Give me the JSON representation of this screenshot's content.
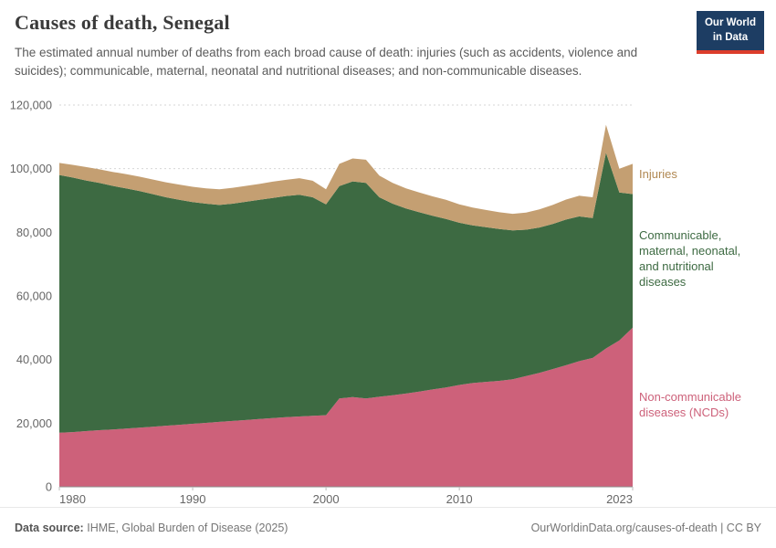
{
  "header": {
    "title": "Causes of death, Senegal",
    "subtitle": "The estimated annual number of deaths from each broad cause of death: injuries (such as accidents, violence and suicides); communicable, maternal, neonatal and nutritional diseases; and non-communicable diseases."
  },
  "logo": {
    "line1": "Our World",
    "line2": "in Data",
    "bg_color": "#1d3d63",
    "accent_color": "#dc3d2b",
    "text_color": "#ffffff"
  },
  "annotations": [
    {
      "text": "Injuries",
      "color": "#b08852"
    },
    {
      "text": "Communicable, maternal, neonatal, and nutritional diseases",
      "color": "#3d6a42"
    },
    {
      "text": "Non-communicable diseases (NCDs)",
      "color": "#cd617a"
    }
  ],
  "chart_data": {
    "type": "area",
    "stacked": true,
    "title": "Causes of death, Senegal",
    "xlabel": "",
    "ylabel": "",
    "ylim": [
      0,
      120000
    ],
    "yticks": [
      0,
      20000,
      40000,
      60000,
      80000,
      100000,
      120000
    ],
    "xticks": [
      1980,
      1990,
      2000,
      2010,
      2023
    ],
    "grid": "horizontal-dashed",
    "axis_color": "#8e8e8e",
    "tick_color": "#666666",
    "legend_position": "right-edge-labels",
    "x": [
      1980,
      1981,
      1982,
      1983,
      1984,
      1985,
      1986,
      1987,
      1988,
      1989,
      1990,
      1991,
      1992,
      1993,
      1994,
      1995,
      1996,
      1997,
      1998,
      1999,
      2000,
      2001,
      2002,
      2003,
      2004,
      2005,
      2006,
      2007,
      2008,
      2009,
      2010,
      2011,
      2012,
      2013,
      2014,
      2015,
      2016,
      2017,
      2018,
      2019,
      2020,
      2021,
      2022,
      2023
    ],
    "series": [
      {
        "name": "Non-communicable diseases (NCDs)",
        "color": "#cd617a",
        "values": [
          17000,
          17200,
          17500,
          17800,
          18000,
          18300,
          18600,
          18900,
          19200,
          19500,
          19800,
          20100,
          20400,
          20700,
          21000,
          21300,
          21600,
          21900,
          22100,
          22300,
          22500,
          27800,
          28200,
          27800,
          28300,
          28800,
          29300,
          29900,
          30600,
          31200,
          32000,
          32600,
          33000,
          33300,
          33800,
          34800,
          35800,
          37000,
          38200,
          39500,
          40500,
          43500,
          46000,
          50000
        ]
      },
      {
        "name": "Communicable, maternal, neonatal, and nutritional diseases",
        "color": "#3d6a42",
        "values": [
          81000,
          80000,
          78800,
          77700,
          76600,
          75500,
          74400,
          73100,
          71800,
          70700,
          69700,
          68900,
          68200,
          68300,
          68600,
          68900,
          69200,
          69500,
          69700,
          68700,
          66300,
          66700,
          67800,
          67700,
          62700,
          60200,
          58200,
          56400,
          54600,
          53000,
          51000,
          49600,
          48600,
          47700,
          46800,
          46000,
          45700,
          45600,
          45800,
          45500,
          44000,
          61500,
          46500,
          42000
        ]
      },
      {
        "name": "Injuries",
        "color": "#c49f72",
        "values": [
          3800,
          4000,
          4200,
          4300,
          4400,
          4500,
          4500,
          4600,
          4700,
          4800,
          4800,
          4800,
          4900,
          5000,
          5000,
          5000,
          5100,
          5100,
          5200,
          5200,
          4700,
          7000,
          7200,
          7300,
          6800,
          6500,
          6300,
          6200,
          6100,
          6000,
          5800,
          5600,
          5400,
          5300,
          5200,
          5400,
          5700,
          6000,
          6300,
          6500,
          6500,
          8800,
          7500,
          9500
        ]
      }
    ]
  },
  "footer": {
    "source_label": "Data source:",
    "source_text": "IHME, Global Burden of Disease (2025)",
    "credit": "OurWorldinData.org/causes-of-death | CC BY"
  }
}
